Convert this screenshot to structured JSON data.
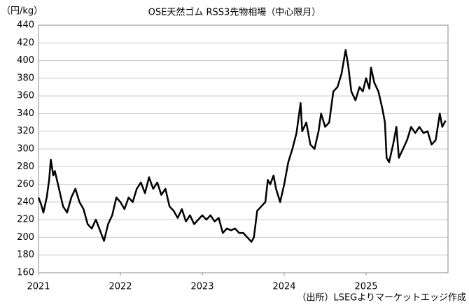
{
  "chart_data": {
    "type": "line",
    "title": "OSE天然ゴム RSS3先物相場（中心限月）",
    "y_label": "（円/kg）",
    "source": "（出所）LSEGよりマーケットエッジ作成",
    "color": "#000000",
    "grid": true,
    "xlim": [
      2021,
      2026
    ],
    "xticks": [
      2021,
      2022,
      2023,
      2024,
      2025
    ],
    "ylim": [
      160,
      440
    ],
    "yticks": [
      160,
      180,
      200,
      220,
      240,
      260,
      280,
      300,
      320,
      340,
      360,
      380,
      400,
      420,
      440
    ],
    "x": [
      2021.0,
      2021.03,
      2021.06,
      2021.1,
      2021.13,
      2021.15,
      2021.18,
      2021.2,
      2021.25,
      2021.3,
      2021.35,
      2021.4,
      2021.45,
      2021.5,
      2021.55,
      2021.6,
      2021.65,
      2021.7,
      2021.75,
      2021.8,
      2021.85,
      2021.9,
      2021.95,
      2022.0,
      2022.05,
      2022.1,
      2022.15,
      2022.2,
      2022.25,
      2022.3,
      2022.35,
      2022.4,
      2022.45,
      2022.5,
      2022.55,
      2022.6,
      2022.65,
      2022.7,
      2022.75,
      2022.8,
      2022.85,
      2022.9,
      2022.95,
      2023.0,
      2023.05,
      2023.1,
      2023.15,
      2023.2,
      2023.25,
      2023.3,
      2023.35,
      2023.4,
      2023.45,
      2023.5,
      2023.55,
      2023.6,
      2023.63,
      2023.67,
      2023.72,
      2023.77,
      2023.8,
      2023.83,
      2023.87,
      2023.9,
      2023.95,
      2024.0,
      2024.05,
      2024.1,
      2024.15,
      2024.2,
      2024.22,
      2024.27,
      2024.32,
      2024.37,
      2024.42,
      2024.45,
      2024.5,
      2024.55,
      2024.6,
      2024.65,
      2024.7,
      2024.75,
      2024.78,
      2024.82,
      2024.87,
      2024.92,
      2024.96,
      2025.0,
      2025.04,
      2025.06,
      2025.1,
      2025.15,
      2025.2,
      2025.23,
      2025.25,
      2025.28,
      2025.33,
      2025.37,
      2025.4,
      2025.45,
      2025.5,
      2025.55,
      2025.6,
      2025.65,
      2025.7,
      2025.75,
      2025.8,
      2025.85,
      2025.9,
      2025.93,
      2025.97
    ],
    "values": [
      245,
      238,
      228,
      245,
      265,
      288,
      270,
      275,
      255,
      235,
      228,
      245,
      255,
      240,
      232,
      215,
      210,
      220,
      208,
      196,
      215,
      225,
      245,
      240,
      232,
      245,
      240,
      255,
      262,
      250,
      268,
      255,
      262,
      248,
      255,
      235,
      230,
      222,
      232,
      218,
      225,
      215,
      220,
      225,
      220,
      225,
      218,
      222,
      205,
      210,
      208,
      210,
      205,
      205,
      200,
      195,
      200,
      230,
      235,
      240,
      265,
      260,
      270,
      255,
      240,
      260,
      285,
      300,
      318,
      352,
      320,
      330,
      305,
      300,
      320,
      340,
      325,
      330,
      365,
      370,
      385,
      412,
      395,
      365,
      355,
      370,
      365,
      380,
      368,
      392,
      375,
      365,
      345,
      330,
      290,
      285,
      305,
      325,
      290,
      300,
      310,
      325,
      318,
      325,
      318,
      320,
      305,
      310,
      340,
      325,
      332
    ]
  }
}
